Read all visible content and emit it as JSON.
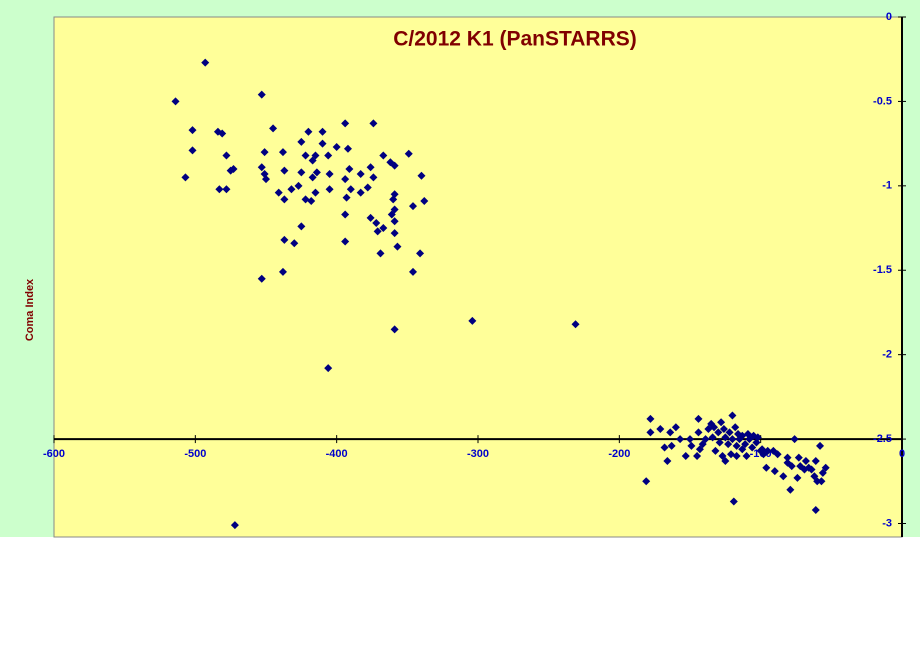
{
  "chart_data": {
    "type": "scatter",
    "title": "C/2012 K1 (PanSTARRS)",
    "y_label": "Coma Index",
    "color": "#000080",
    "x_axis_at": -2.5,
    "xlim": [
      -600,
      0
    ],
    "xticks": [
      -600,
      -500,
      -400,
      -300,
      -200,
      -100,
      0
    ],
    "ylim": [
      -3.08,
      0
    ],
    "yticks": [
      0,
      -0.5,
      -1,
      -1.5,
      -2,
      -2.5,
      -3
    ],
    "x": [
      -514,
      -493,
      -507,
      -502,
      -502,
      -484,
      -481,
      -478,
      -483,
      -478,
      -475,
      -473,
      -472,
      -453,
      -451,
      -453,
      -451,
      -450,
      -445,
      -441,
      -438,
      -437,
      -437,
      -437,
      -432,
      -430,
      -427,
      -425,
      -425,
      -422,
      -422,
      -425,
      -420,
      -417,
      -417,
      -418,
      -415,
      -414,
      -415,
      -410,
      -410,
      -406,
      -405,
      -405,
      -400,
      -394,
      -392,
      -394,
      -393,
      -394,
      -391,
      -390,
      -383,
      -383,
      -376,
      -378,
      -374,
      -374,
      -376,
      -372,
      -371,
      -367,
      -367,
      -369,
      -362,
      -359,
      -359,
      -360,
      -361,
      -359,
      -359,
      -359,
      -357,
      -349,
      -346,
      -346,
      -341,
      -340,
      -338,
      -453,
      -438,
      -394,
      -359,
      -406,
      -304,
      -231,
      -181,
      -178,
      -178,
      -171,
      -168,
      -166,
      -164,
      -163,
      -160,
      -157,
      -153,
      -150,
      -149,
      -145,
      -144,
      -144,
      -143,
      -141,
      -139,
      -137,
      -135,
      -134,
      -133,
      -132,
      -130,
      -129,
      -128,
      -127,
      -126,
      -125,
      -125,
      -123,
      -122,
      -121,
      -120,
      -120,
      -119,
      -118,
      -117,
      -117,
      -116,
      -115,
      -113,
      -113,
      -111,
      -110,
      -109,
      -108,
      -106,
      -105,
      -103,
      -102,
      -100,
      -99,
      -98,
      -96,
      -95,
      -91,
      -90,
      -88,
      -84,
      -81,
      -81,
      -79,
      -78,
      -76,
      -74,
      -73,
      -72,
      -69,
      -68,
      -66,
      -64,
      -62,
      -61,
      -61,
      -60,
      -58,
      -57,
      -56,
      -54
    ],
    "values": [
      -0.5,
      -0.27,
      -0.95,
      -0.67,
      -0.79,
      -0.68,
      -0.69,
      -0.82,
      -1.02,
      -1.02,
      -0.91,
      -0.9,
      -3.01,
      -0.46,
      -0.8,
      -0.89,
      -0.93,
      -0.96,
      -0.66,
      -1.04,
      -0.8,
      -0.91,
      -1.08,
      -1.32,
      -1.02,
      -1.34,
      -1.0,
      -0.92,
      -0.74,
      -0.82,
      -1.08,
      -1.24,
      -0.68,
      -0.85,
      -0.95,
      -1.09,
      -0.82,
      -0.92,
      -1.04,
      -0.68,
      -0.75,
      -0.82,
      -0.93,
      -1.02,
      -0.77,
      -0.63,
      -0.78,
      -0.96,
      -1.07,
      -1.17,
      -0.9,
      -1.02,
      -0.93,
      -1.04,
      -0.89,
      -1.01,
      -0.63,
      -0.95,
      -1.19,
      -1.22,
      -1.27,
      -0.82,
      -1.25,
      -1.4,
      -0.86,
      -0.88,
      -1.05,
      -1.08,
      -1.17,
      -1.14,
      -1.21,
      -1.28,
      -1.36,
      -0.81,
      -1.12,
      -1.51,
      -1.4,
      -0.94,
      -1.09,
      -1.55,
      -1.51,
      -1.33,
      -1.85,
      -2.08,
      -1.8,
      -1.82,
      -2.75,
      -2.38,
      -2.46,
      -2.44,
      -2.55,
      -2.63,
      -2.46,
      -2.54,
      -2.43,
      -2.5,
      -2.6,
      -2.5,
      -2.54,
      -2.6,
      -2.38,
      -2.46,
      -2.56,
      -2.53,
      -2.5,
      -2.44,
      -2.41,
      -2.49,
      -2.43,
      -2.57,
      -2.46,
      -2.52,
      -2.4,
      -2.6,
      -2.44,
      -2.63,
      -2.49,
      -2.53,
      -2.46,
      -2.59,
      -2.36,
      -2.5,
      -2.87,
      -2.43,
      -2.54,
      -2.6,
      -2.47,
      -2.5,
      -2.56,
      -2.48,
      -2.53,
      -2.6,
      -2.47,
      -2.5,
      -2.55,
      -2.48,
      -2.52,
      -2.49,
      -2.57,
      -2.56,
      -2.59,
      -2.67,
      -2.57,
      -2.57,
      -2.69,
      -2.59,
      -2.72,
      -2.61,
      -2.64,
      -2.8,
      -2.66,
      -2.5,
      -2.73,
      -2.61,
      -2.66,
      -2.68,
      -2.63,
      -2.67,
      -2.68,
      -2.72,
      -2.63,
      -2.92,
      -2.75,
      -2.54,
      -2.75,
      -2.7,
      -2.67
    ]
  }
}
